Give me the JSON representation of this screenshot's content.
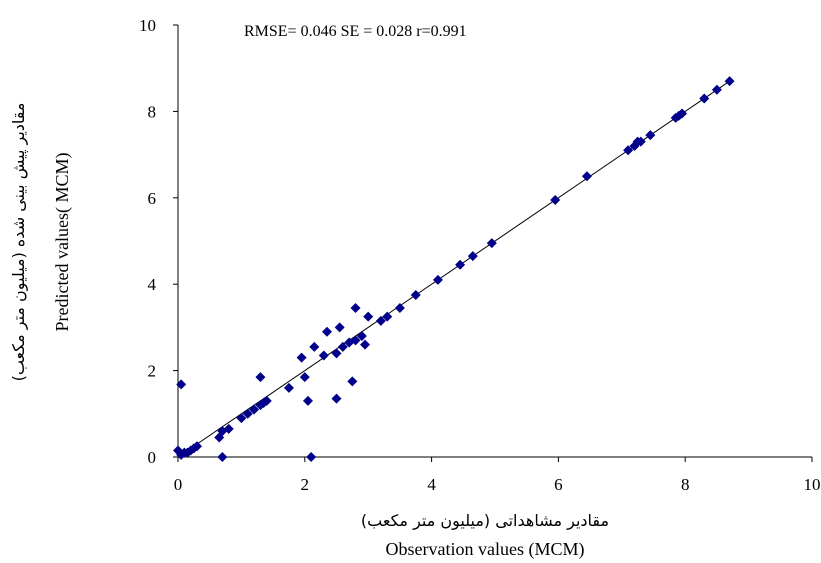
{
  "chart_data": {
    "type": "scatter",
    "stats_text": "RMSE= 0.046  SE = 0.028  r=0.991",
    "xlabel": "Observation values (MCM)",
    "xlabel_fa": "مقادیر مشاهداتی (میلیون متر مکعب)",
    "ylabel": "Predicted values( MCM)",
    "ylabel_fa": "مقادیر پیش بینی شده (میلیون متر مکعب)",
    "xlim": [
      0,
      10
    ],
    "ylim": [
      0,
      10
    ],
    "x_ticks": [
      "0",
      "2",
      "4",
      "6",
      "8",
      "10"
    ],
    "y_ticks": [
      "0",
      "2",
      "4",
      "6",
      "8",
      "10"
    ],
    "grid": false,
    "marker_color": "#00008B",
    "line_color": "#000000",
    "fit_line": [
      [
        0,
        0
      ],
      [
        8.7,
        8.7
      ]
    ],
    "points": [
      [
        0.0,
        0.15
      ],
      [
        0.05,
        0.05
      ],
      [
        0.1,
        0.1
      ],
      [
        0.15,
        0.1
      ],
      [
        0.2,
        0.15
      ],
      [
        0.25,
        0.2
      ],
      [
        0.3,
        0.25
      ],
      [
        0.05,
        1.68
      ],
      [
        0.7,
        0.0
      ],
      [
        0.65,
        0.45
      ],
      [
        0.7,
        0.6
      ],
      [
        0.8,
        0.65
      ],
      [
        1.0,
        0.9
      ],
      [
        1.1,
        1.0
      ],
      [
        1.2,
        1.1
      ],
      [
        1.3,
        1.2
      ],
      [
        1.35,
        1.25
      ],
      [
        1.4,
        1.3
      ],
      [
        1.3,
        1.85
      ],
      [
        1.75,
        1.6
      ],
      [
        2.0,
        1.85
      ],
      [
        2.05,
        1.3
      ],
      [
        2.1,
        0.0
      ],
      [
        1.95,
        2.3
      ],
      [
        2.15,
        2.55
      ],
      [
        2.3,
        2.35
      ],
      [
        2.35,
        2.9
      ],
      [
        2.5,
        2.4
      ],
      [
        2.55,
        3.0
      ],
      [
        2.5,
        1.35
      ],
      [
        2.6,
        2.55
      ],
      [
        2.7,
        2.65
      ],
      [
        2.75,
        1.75
      ],
      [
        2.8,
        2.7
      ],
      [
        2.8,
        3.45
      ],
      [
        2.9,
        2.8
      ],
      [
        2.95,
        2.6
      ],
      [
        3.0,
        3.25
      ],
      [
        3.2,
        3.15
      ],
      [
        3.3,
        3.25
      ],
      [
        3.5,
        3.45
      ],
      [
        3.75,
        3.75
      ],
      [
        4.1,
        4.1
      ],
      [
        4.45,
        4.45
      ],
      [
        4.65,
        4.65
      ],
      [
        4.95,
        4.95
      ],
      [
        5.95,
        5.95
      ],
      [
        6.45,
        6.5
      ],
      [
        7.1,
        7.1
      ],
      [
        7.2,
        7.2
      ],
      [
        7.25,
        7.3
      ],
      [
        7.3,
        7.3
      ],
      [
        7.45,
        7.45
      ],
      [
        7.85,
        7.85
      ],
      [
        7.9,
        7.9
      ],
      [
        7.95,
        7.95
      ],
      [
        8.3,
        8.3
      ],
      [
        8.5,
        8.5
      ],
      [
        8.7,
        8.7
      ]
    ]
  }
}
